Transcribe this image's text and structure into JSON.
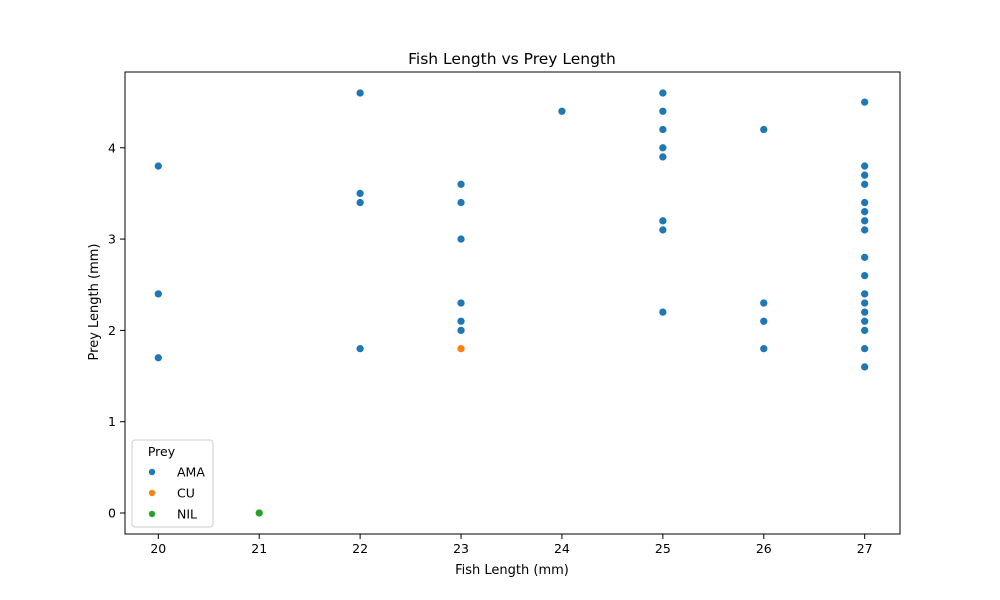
{
  "chart_data": {
    "type": "scatter",
    "title": "Fish Length vs Prey Length",
    "xlabel": "Fish Length (mm)",
    "ylabel": "Prey Length (mm)",
    "xlim": [
      19.67,
      27.35
    ],
    "ylim": [
      -0.23,
      4.83
    ],
    "xticks": [
      20,
      21,
      22,
      23,
      24,
      25,
      26,
      27
    ],
    "yticks": [
      0,
      1,
      2,
      3,
      4
    ],
    "grid": false,
    "legend": {
      "title": "Prey",
      "placement": "lower-left"
    },
    "series": [
      {
        "name": "AMA",
        "color": "#1f77b4",
        "points": [
          [
            20,
            3.8
          ],
          [
            20,
            2.4
          ],
          [
            20,
            1.7
          ],
          [
            22,
            4.6
          ],
          [
            22,
            3.5
          ],
          [
            22,
            3.4
          ],
          [
            22,
            1.8
          ],
          [
            23,
            3.6
          ],
          [
            23,
            3.4
          ],
          [
            23,
            3.0
          ],
          [
            23,
            2.3
          ],
          [
            23,
            2.1
          ],
          [
            23,
            2.0
          ],
          [
            24,
            4.4
          ],
          [
            25,
            4.6
          ],
          [
            25,
            4.4
          ],
          [
            25,
            4.2
          ],
          [
            25,
            4.0
          ],
          [
            25,
            3.9
          ],
          [
            25,
            3.2
          ],
          [
            25,
            3.1
          ],
          [
            25,
            2.2
          ],
          [
            26,
            4.2
          ],
          [
            26,
            2.3
          ],
          [
            26,
            2.1
          ],
          [
            26,
            1.8
          ],
          [
            27,
            4.5
          ],
          [
            27,
            3.8
          ],
          [
            27,
            3.7
          ],
          [
            27,
            3.6
          ],
          [
            27,
            3.4
          ],
          [
            27,
            3.3
          ],
          [
            27,
            3.2
          ],
          [
            27,
            3.1
          ],
          [
            27,
            2.8
          ],
          [
            27,
            2.6
          ],
          [
            27,
            2.4
          ],
          [
            27,
            2.3
          ],
          [
            27,
            2.2
          ],
          [
            27,
            2.1
          ],
          [
            27,
            2.0
          ],
          [
            27,
            1.8
          ],
          [
            27,
            1.6
          ]
        ]
      },
      {
        "name": "CU",
        "color": "#ff7f0e",
        "points": [
          [
            23,
            1.8
          ]
        ]
      },
      {
        "name": "NIL",
        "color": "#2ca02c",
        "points": [
          [
            21,
            0.0
          ]
        ]
      }
    ]
  }
}
